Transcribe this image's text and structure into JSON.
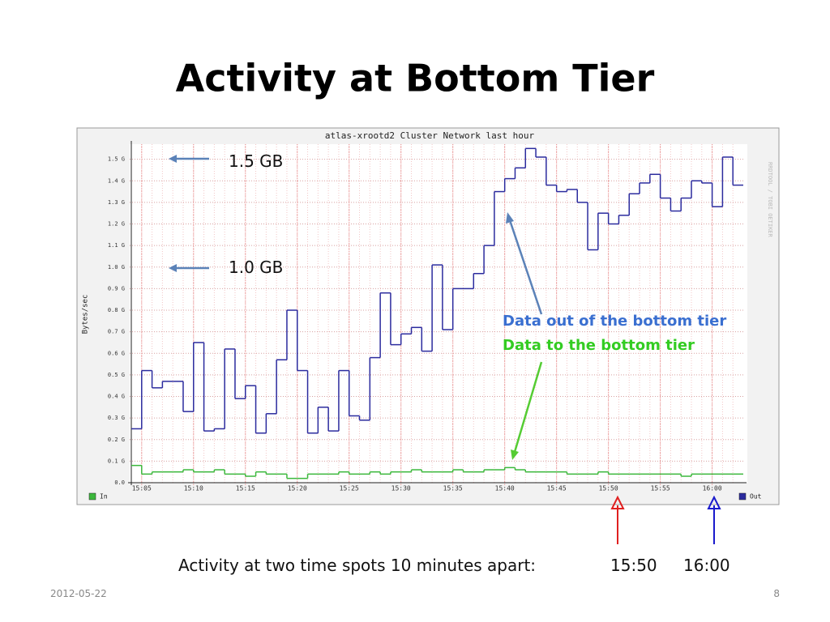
{
  "title": "Activity at Bottom Tier",
  "chart_data": {
    "type": "line",
    "step": true,
    "title": "atlas-xrootd2 Cluster Network last hour",
    "y_label": "Bytes/sec",
    "watermark": "RRDTOOL / TOBI OETIKER",
    "x": [
      "15:04",
      "15:05",
      "15:06",
      "15:07",
      "15:08",
      "15:09",
      "15:10",
      "15:11",
      "15:12",
      "15:13",
      "15:14",
      "15:15",
      "15:16",
      "15:17",
      "15:18",
      "15:19",
      "15:20",
      "15:21",
      "15:22",
      "15:23",
      "15:24",
      "15:25",
      "15:26",
      "15:27",
      "15:28",
      "15:29",
      "15:30",
      "15:31",
      "15:32",
      "15:33",
      "15:34",
      "15:35",
      "15:36",
      "15:37",
      "15:38",
      "15:39",
      "15:40",
      "15:41",
      "15:42",
      "15:43",
      "15:44",
      "15:45",
      "15:46",
      "15:47",
      "15:48",
      "15:49",
      "15:50",
      "15:51",
      "15:52",
      "15:53",
      "15:54",
      "15:55",
      "15:56",
      "15:57",
      "15:58",
      "15:59",
      "16:00",
      "16:01",
      "16:02"
    ],
    "xlim": [
      "15:04",
      "16:03"
    ],
    "xticks": [
      "15:05",
      "15:10",
      "15:15",
      "15:20",
      "15:25",
      "15:30",
      "15:35",
      "15:40",
      "15:45",
      "15:50",
      "15:55",
      "16:00"
    ],
    "ylim": [
      0,
      1.57
    ],
    "yticks": [
      {
        "value": 0,
        "label": "0.0"
      },
      {
        "value": 0.1,
        "label": "0.1 G"
      },
      {
        "value": 0.2,
        "label": "0.2 G"
      },
      {
        "value": 0.3,
        "label": "0.3 G"
      },
      {
        "value": 0.4,
        "label": "0.4 G"
      },
      {
        "value": 0.5,
        "label": "0.5 G"
      },
      {
        "value": 0.6,
        "label": "0.6 G"
      },
      {
        "value": 0.7,
        "label": "0.7 G"
      },
      {
        "value": 0.8,
        "label": "0.8 G"
      },
      {
        "value": 0.9,
        "label": "0.9 G"
      },
      {
        "value": 1.0,
        "label": "1.0 G"
      },
      {
        "value": 1.1,
        "label": "1.1 G"
      },
      {
        "value": 1.2,
        "label": "1.2 G"
      },
      {
        "value": 1.3,
        "label": "1.3 G"
      },
      {
        "value": 1.4,
        "label": "1.4 G"
      },
      {
        "value": 1.5,
        "label": "1.5 G"
      }
    ],
    "grid": true,
    "series": [
      {
        "name": "In",
        "color": "#3cb83c",
        "legend": "left",
        "values": [
          0.08,
          0.04,
          0.05,
          0.05,
          0.05,
          0.06,
          0.05,
          0.05,
          0.06,
          0.04,
          0.04,
          0.03,
          0.05,
          0.04,
          0.04,
          0.02,
          0.02,
          0.04,
          0.04,
          0.04,
          0.05,
          0.04,
          0.04,
          0.05,
          0.04,
          0.05,
          0.05,
          0.06,
          0.05,
          0.05,
          0.05,
          0.06,
          0.05,
          0.05,
          0.06,
          0.06,
          0.07,
          0.06,
          0.05,
          0.05,
          0.05,
          0.05,
          0.04,
          0.04,
          0.04,
          0.05,
          0.04,
          0.04,
          0.04,
          0.04,
          0.04,
          0.04,
          0.04,
          0.03,
          0.04,
          0.04,
          0.04,
          0.04,
          0.04
        ]
      },
      {
        "name": "Out",
        "color": "#2b2b9e",
        "legend": "right",
        "values": [
          0.25,
          0.52,
          0.44,
          0.47,
          0.47,
          0.33,
          0.65,
          0.24,
          0.25,
          0.62,
          0.39,
          0.45,
          0.23,
          0.32,
          0.57,
          0.8,
          0.52,
          0.23,
          0.35,
          0.24,
          0.52,
          0.31,
          0.29,
          0.58,
          0.88,
          0.64,
          0.69,
          0.72,
          0.61,
          1.01,
          0.71,
          0.9,
          0.9,
          0.97,
          1.1,
          1.35,
          1.41,
          1.46,
          1.55,
          1.51,
          1.38,
          1.35,
          1.36,
          1.3,
          1.08,
          1.25,
          1.2,
          1.24,
          1.34,
          1.39,
          1.43,
          1.32,
          1.26,
          1.32,
          1.4,
          1.39,
          1.28,
          1.51,
          1.38
        ]
      }
    ]
  },
  "annotations": {
    "gb15": "1.5 GB",
    "gb10": "1.0 GB",
    "out_note": "Data out of the bottom tier",
    "in_note": "Data to the bottom tier",
    "caption": "Activity at two time spots 10 minutes apart:",
    "spot1": "15:50",
    "spot2": "16:00"
  },
  "footer": {
    "date": "2012-05-22",
    "page": "8"
  }
}
